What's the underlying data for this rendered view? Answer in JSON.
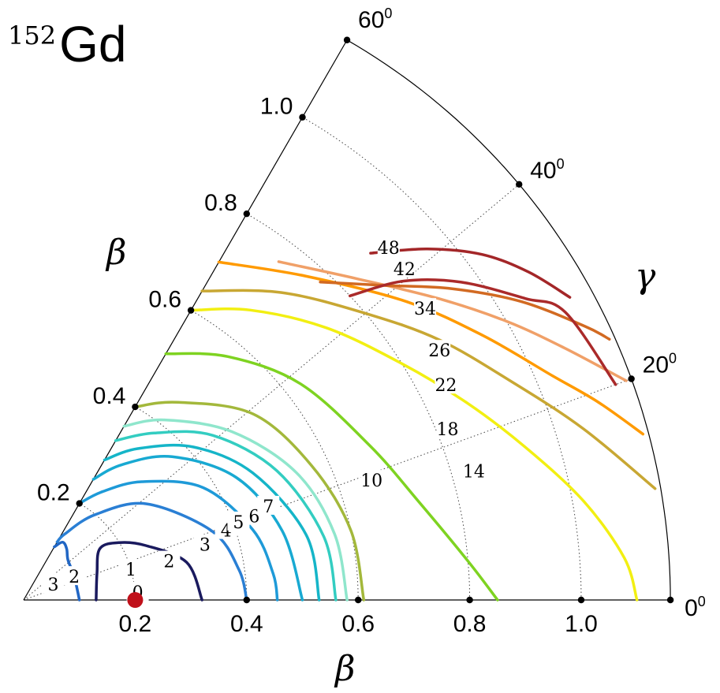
{
  "chart_data": {
    "type": "contour",
    "title": {
      "mass_number": "152",
      "element": "Gd"
    },
    "radial_label": "β",
    "beta_axis_label": "β",
    "gamma_axis_label": "γ",
    "beta_max": 1.16,
    "beta_ticks": [
      {
        "value": 0.2,
        "label": "0.2"
      },
      {
        "value": 0.4,
        "label": "0.4"
      },
      {
        "value": 0.6,
        "label": "0.6"
      },
      {
        "value": 0.8,
        "label": "0.8"
      },
      {
        "value": 1.0,
        "label": "1.0"
      }
    ],
    "gamma_ticks": [
      {
        "value": 0,
        "label": "0",
        "sup": "0"
      },
      {
        "value": 20,
        "label": "20",
        "sup": "0"
      },
      {
        "value": 40,
        "label": "40",
        "sup": "0"
      },
      {
        "value": 60,
        "label": "60",
        "sup": "0"
      }
    ],
    "grid": true,
    "minimum": {
      "beta": 0.2,
      "gamma": 0
    },
    "contours": [
      {
        "level": "0",
        "color": "#1a1a5e",
        "points": [
          [
            0.13,
            0
          ],
          [
            0.14,
            20
          ],
          [
            0.165,
            34
          ],
          [
            0.2,
            31
          ],
          [
            0.24,
            24
          ],
          [
            0.3,
            13
          ],
          [
            0.32,
            0
          ]
        ]
      },
      {
        "level": "1",
        "color": "#2166c4",
        "points": [
          [
            0.1,
            0
          ],
          [
            0.1,
            25
          ],
          [
            0.107,
            42
          ],
          [
            0.12,
            50
          ],
          [
            0.125,
            56
          ],
          [
            0.11,
            60
          ]
        ]
      },
      {
        "level": "2",
        "color": "#2a7fd4",
        "points": [
          [
            0.12,
            60
          ],
          [
            0.14,
            58
          ],
          [
            0.2,
            50
          ],
          [
            0.28,
            38
          ],
          [
            0.36,
            20
          ],
          [
            0.39,
            8
          ],
          [
            0.4,
            0
          ]
        ]
      },
      {
        "level": "3",
        "color": "#1e9ad8",
        "points": [
          [
            0.2,
            60
          ],
          [
            0.24,
            54
          ],
          [
            0.3,
            45
          ],
          [
            0.38,
            32
          ],
          [
            0.43,
            17
          ],
          [
            0.45,
            6
          ],
          [
            0.455,
            0
          ]
        ]
      },
      {
        "level": "4",
        "color": "#18a9d2",
        "points": [
          [
            0.25,
            60
          ],
          [
            0.3,
            54
          ],
          [
            0.37,
            44
          ],
          [
            0.44,
            30
          ],
          [
            0.48,
            15
          ],
          [
            0.5,
            0
          ]
        ]
      },
      {
        "level": "5",
        "color": "#15b5c8",
        "points": [
          [
            0.29,
            60
          ],
          [
            0.34,
            53
          ],
          [
            0.41,
            42
          ],
          [
            0.47,
            29
          ],
          [
            0.52,
            13
          ],
          [
            0.53,
            0
          ]
        ]
      },
      {
        "level": "6",
        "color": "#33cdc1",
        "points": [
          [
            0.33,
            60
          ],
          [
            0.38,
            52
          ],
          [
            0.45,
            41
          ],
          [
            0.51,
            27
          ],
          [
            0.55,
            12
          ],
          [
            0.56,
            0
          ]
        ]
      },
      {
        "level": "7",
        "color": "#8fe6cc",
        "points": [
          [
            0.36,
            60
          ],
          [
            0.41,
            52
          ],
          [
            0.48,
            39
          ],
          [
            0.54,
            25
          ],
          [
            0.57,
            12
          ],
          [
            0.58,
            0
          ]
        ]
      },
      {
        "level": "",
        "color": "#a3b83b",
        "points": [
          [
            0.4,
            60
          ],
          [
            0.45,
            52
          ],
          [
            0.53,
            39
          ],
          [
            0.57,
            25
          ],
          [
            0.6,
            12
          ],
          [
            0.61,
            0
          ]
        ]
      },
      {
        "level": "10",
        "color": "#7ed321",
        "points": [
          [
            0.51,
            60
          ],
          [
            0.57,
            50
          ],
          [
            0.63,
            38
          ],
          [
            0.68,
            24
          ],
          [
            0.73,
            14
          ],
          [
            0.8,
            5
          ],
          [
            0.85,
            0
          ]
        ]
      },
      {
        "level": "14",
        "color": "#f2ef12",
        "points": [
          [
            0.6,
            60
          ],
          [
            0.66,
            52
          ],
          [
            0.73,
            42
          ],
          [
            0.8,
            32
          ],
          [
            0.87,
            24
          ],
          [
            0.94,
            17
          ],
          [
            1.02,
            10
          ],
          [
            1.08,
            4
          ],
          [
            1.1,
            0
          ]
        ]
      },
      {
        "level": "18",
        "color": "#c8a733",
        "points": [
          [
            0.64,
            60
          ],
          [
            0.72,
            50
          ],
          [
            0.8,
            40
          ],
          [
            0.88,
            32
          ],
          [
            0.96,
            24
          ],
          [
            1.05,
            17
          ],
          [
            1.15,
            10
          ]
        ]
      },
      {
        "level": "22",
        "color": "#ff9a00",
        "points": [
          [
            0.7,
            60
          ],
          [
            0.77,
            49
          ],
          [
            0.87,
            38
          ],
          [
            0.95,
            30
          ],
          [
            1.03,
            23
          ],
          [
            1.09,
            19
          ],
          [
            1.15,
            15
          ]
        ]
      },
      {
        "level": "26",
        "color": "#f0a068",
        "points": [
          [
            0.76,
            53
          ],
          [
            0.83,
            44
          ],
          [
            0.92,
            36
          ],
          [
            1.0,
            30
          ],
          [
            1.07,
            25
          ],
          [
            1.15,
            20
          ]
        ]
      },
      {
        "level": "34",
        "color": "#d26a22",
        "points": [
          [
            0.78,
            47
          ],
          [
            0.86,
            41
          ],
          [
            0.95,
            36
          ],
          [
            1.04,
            31
          ],
          [
            1.12,
            26
          ],
          [
            1.15,
            24
          ]
        ]
      },
      {
        "level": "42",
        "color": "#aa2a2a",
        "points": [
          [
            0.8,
            43
          ],
          [
            0.89,
            40
          ],
          [
            0.97,
            36
          ],
          [
            1.05,
            31
          ],
          [
            1.1,
            28
          ],
          [
            1.13,
            20
          ]
        ]
      },
      {
        "level": "48",
        "color": "#a32628",
        "points": [
          [
            0.88,
            45
          ],
          [
            0.96,
            41
          ],
          [
            1.03,
            37
          ],
          [
            1.08,
            33
          ],
          [
            1.12,
            29
          ]
        ]
      }
    ],
    "contour_labels": [
      {
        "text": "0",
        "beta": 0.205,
        "gamma": 4
      },
      {
        "text": "1",
        "beta": 0.2,
        "gamma": 16
      },
      {
        "text": "2",
        "beta": 0.27,
        "gamma": 15
      },
      {
        "text": "3",
        "beta": 0.34,
        "gamma": 17
      },
      {
        "text": "4",
        "beta": 0.384,
        "gamma": 19
      },
      {
        "text": "5",
        "beta": 0.41,
        "gamma": 20
      },
      {
        "text": "6",
        "beta": 0.44,
        "gamma": 20
      },
      {
        "text": "7",
        "beta": 0.47,
        "gamma": 21
      },
      {
        "text": "10",
        "beta": 0.66,
        "gamma": 19
      },
      {
        "text": "14",
        "beta": 0.84,
        "gamma": 16
      },
      {
        "text": "18",
        "beta": 0.82,
        "gamma": 22
      },
      {
        "text": "22",
        "beta": 0.85,
        "gamma": 27
      },
      {
        "text": "26",
        "beta": 0.87,
        "gamma": 31
      },
      {
        "text": "34",
        "beta": 0.89,
        "gamma": 36
      },
      {
        "text": "42",
        "beta": 0.905,
        "gamma": 41
      },
      {
        "text": "48",
        "beta": 0.91,
        "gamma": 44
      },
      {
        "text": "2",
        "beta": 0.1,
        "gamma": 25
      },
      {
        "text": "3",
        "beta": 0.06,
        "gamma": 28
      }
    ]
  }
}
